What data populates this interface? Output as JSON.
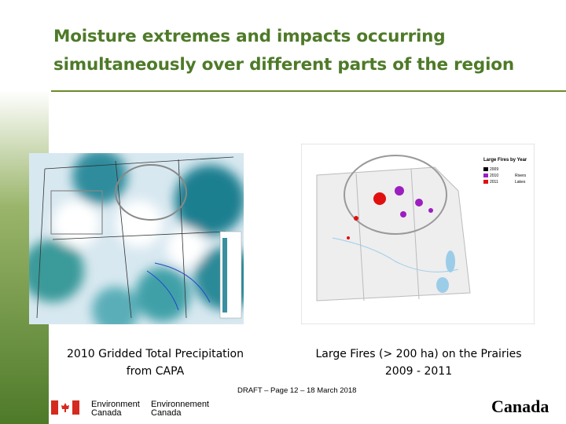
{
  "slide": {
    "title_lines": [
      "Moisture extremes and impacts occurring",
      "simultaneously over different parts of the region"
    ],
    "left_caption": [
      "2010 Gridded Total Precipitation",
      "from CAPA"
    ],
    "right_caption": [
      "Large Fires (> 200 ha) on the Prairies",
      "2009 - 2011"
    ],
    "right_legend": {
      "title": "Large Fires by Year",
      "items": [
        "2009",
        "2010",
        "2011"
      ],
      "extras": [
        "Rivers",
        "Lakes"
      ]
    },
    "footer": "DRAFT – Page 12 – 18 March 2018",
    "logo": {
      "en": [
        "Environment",
        "Canada"
      ],
      "fr": [
        "Environnement",
        "Canada"
      ],
      "wordmark": "Canada"
    }
  }
}
